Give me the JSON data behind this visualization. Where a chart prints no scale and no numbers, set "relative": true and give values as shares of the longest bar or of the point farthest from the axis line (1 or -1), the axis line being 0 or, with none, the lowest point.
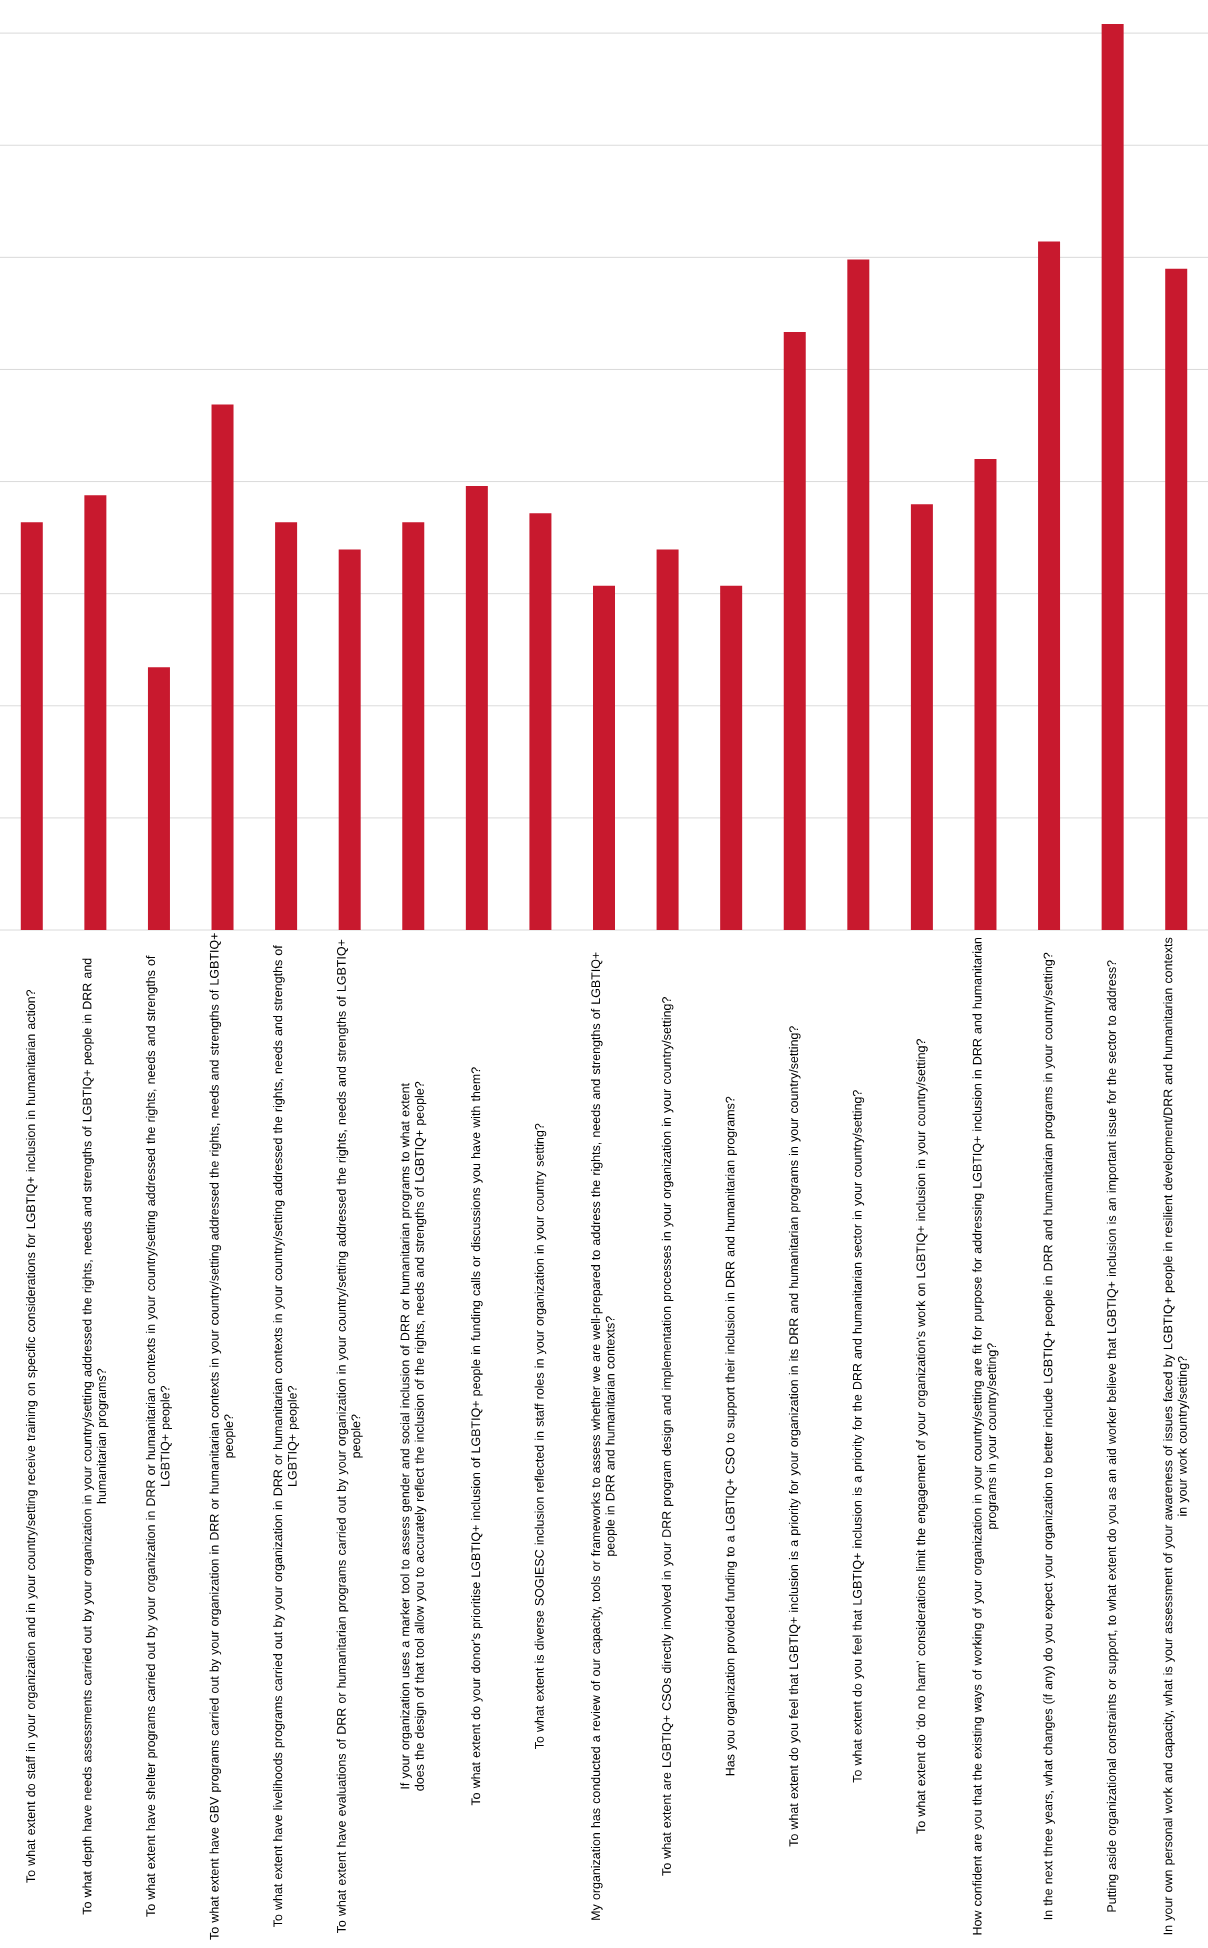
{
  "chart_data": {
    "type": "bar",
    "relative": true,
    "grid": "y",
    "color": "#c8192e",
    "categories": [
      "To what extent do staff in your organization and in your country/setting receive training on specific considerations for LGBTIQ+ inclusion in humanitarian action?",
      "To what depth have needs assessments carried out by your organization in your country/setting addressed the rights, needs and strengths of LGBTIQ+ people in DRR and humanitarian programs?",
      "To what extent have shelter programs carried out by your organization in DRR or humanitarian contexts in your country/setting addressed the rights, needs and strengths of LGBTIQ+ people?",
      "To what extent have GBV programs carried out by your organization in DRR or humanitarian contexts in your country/setting addressed the rights, needs and strengths of LGBTIQ+ people?",
      "To what extent have livelihoods programs carried out by your organization in DRR or humanitarian contexts in your country/setting addressed the rights, needs and strengths of LGBTIQ+ people?",
      "To what extent have evaluations of DRR or humanitarian programs carried out by your organization in your country/setting addressed the rights, needs and strengths of LGBTIQ+ people?",
      "If your organization uses a marker tool to assess gender and social inclusion of DRR or humanitarian programs to what extent does the design of that tool allow you to accurately reflect the inclusion of the rights, needs and strengths of LGBTIQ+ people?",
      "To what extent do your donor's prioritise LGBTIQ+ inclusion of LGBTIQ+ people in funding calls or discussions you have with them?",
      "To what extent is diverse SOGIESC inclusion reflected in staff roles in your organization in your country setting?",
      "My organization has conducted a review of our capacity, tools or frameworks to assess whether we are well-prepared to address the rights, needs and strengths of LGBTIQ+ people in DRR and humanitarian contexts?",
      "To what extent are LGBTIQ+ CSOs directly involved in your DRR program design and implementation processes in your organization in your country/setting?",
      "Has you organization provided funding to a LGBTIQ+ CSO to support their inclusion in DRR and humanitarian programs?",
      "To what extent do you feel that LGBTIQ+ inclusion is a priority for your organization in its DRR and humanitarian programs in your country/setting?",
      "To what extent do you feel that LGBTIQ+ inclusion is a priority for the DRR and humanitarian sector in your country/setting?",
      "To what extent do ‘do no harm’ considerations limit the engagement of your organization’s work on LGBTIQ+ inclusion in your country/setting?",
      "How confident are you that the existing ways of working of your organization in your country/setting are fit for purpose for addressing LGBTIQ+ inclusion in DRR and humanitarian programs in your country/setting?",
      "In the next three years, what changes (if any) do you expect your organization to better include LGBTIQ+ people in DRR and humanitarian programs in your country/setting?",
      "Putting aside organizational constraints or support, to what extent do you as an aid worker believe that LGBTIQ+ inclusion is an important issue for the sector to address?",
      "In your own personal work and capacity, what is your assessment of your awareness of issues faced by LGBTIQ+ people in resilient development/DRR and humanitarian contexts in your work country/setting?"
    ],
    "values": [
      0.45,
      0.48,
      0.29,
      0.58,
      0.45,
      0.42,
      0.45,
      0.49,
      0.46,
      0.38,
      0.42,
      0.38,
      0.66,
      0.74,
      0.47,
      0.52,
      0.76,
      1,
      0.73
    ]
  }
}
